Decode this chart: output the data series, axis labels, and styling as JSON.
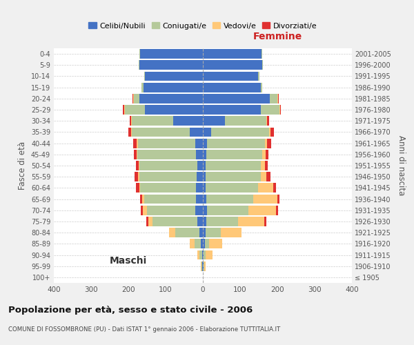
{
  "age_groups": [
    "100+",
    "95-99",
    "90-94",
    "85-89",
    "80-84",
    "75-79",
    "70-74",
    "65-69",
    "60-64",
    "55-59",
    "50-54",
    "45-49",
    "40-44",
    "35-39",
    "30-34",
    "25-29",
    "20-24",
    "15-19",
    "10-14",
    "5-9",
    "0-4"
  ],
  "birth_years": [
    "≤ 1905",
    "1906-1910",
    "1911-1915",
    "1916-1920",
    "1921-1925",
    "1926-1930",
    "1931-1935",
    "1936-1940",
    "1941-1945",
    "1946-1950",
    "1951-1955",
    "1956-1960",
    "1961-1965",
    "1966-1970",
    "1971-1975",
    "1976-1980",
    "1981-1985",
    "1986-1990",
    "1991-1995",
    "1996-2000",
    "2001-2005"
  ],
  "males": {
    "celibe": [
      0,
      1,
      2,
      5,
      10,
      15,
      20,
      18,
      18,
      16,
      15,
      18,
      20,
      35,
      80,
      155,
      170,
      160,
      155,
      170,
      168
    ],
    "coniugato": [
      0,
      2,
      8,
      18,
      65,
      120,
      130,
      140,
      150,
      155,
      155,
      158,
      155,
      155,
      110,
      55,
      15,
      5,
      3,
      2,
      2
    ],
    "vedovo": [
      0,
      2,
      5,
      12,
      15,
      12,
      12,
      5,
      3,
      3,
      2,
      2,
      2,
      2,
      2,
      2,
      2,
      0,
      0,
      0,
      0
    ],
    "divorziato": [
      0,
      0,
      0,
      0,
      0,
      5,
      5,
      5,
      8,
      10,
      8,
      8,
      10,
      8,
      5,
      2,
      2,
      0,
      0,
      0,
      0
    ]
  },
  "females": {
    "nubile": [
      0,
      1,
      2,
      5,
      8,
      10,
      12,
      10,
      8,
      8,
      8,
      10,
      12,
      22,
      60,
      155,
      180,
      155,
      148,
      160,
      158
    ],
    "coniugata": [
      0,
      2,
      5,
      12,
      40,
      85,
      110,
      125,
      140,
      148,
      148,
      150,
      155,
      155,
      110,
      50,
      20,
      5,
      3,
      2,
      2
    ],
    "vedova": [
      0,
      5,
      18,
      35,
      55,
      70,
      75,
      65,
      40,
      15,
      10,
      8,
      6,
      4,
      3,
      2,
      2,
      0,
      0,
      0,
      0
    ],
    "divorziata": [
      0,
      0,
      0,
      0,
      0,
      5,
      5,
      5,
      8,
      10,
      8,
      8,
      10,
      10,
      5,
      2,
      2,
      0,
      0,
      0,
      0
    ]
  },
  "colors": {
    "celibe": "#4472c4",
    "coniugato": "#b5c99a",
    "vedovo": "#ffc878",
    "divorziato": "#e03030"
  },
  "xlim": 400,
  "title": "Popolazione per età, sesso e stato civile - 2006",
  "subtitle": "COMUNE DI FOSSOMBRONE (PU) - Dati ISTAT 1° gennaio 2006 - Elaborazione TUTTITALIA.IT",
  "ylabel_left": "Fasce di età",
  "ylabel_right": "Anni di nascita",
  "xlabel_left": "Maschi",
  "xlabel_right": "Femmine",
  "legend_labels": [
    "Celibi/Nubili",
    "Coniugati/e",
    "Vedovi/e",
    "Divorziati/e"
  ],
  "bg_color": "#f0f0f0",
  "plot_bg": "#ffffff"
}
